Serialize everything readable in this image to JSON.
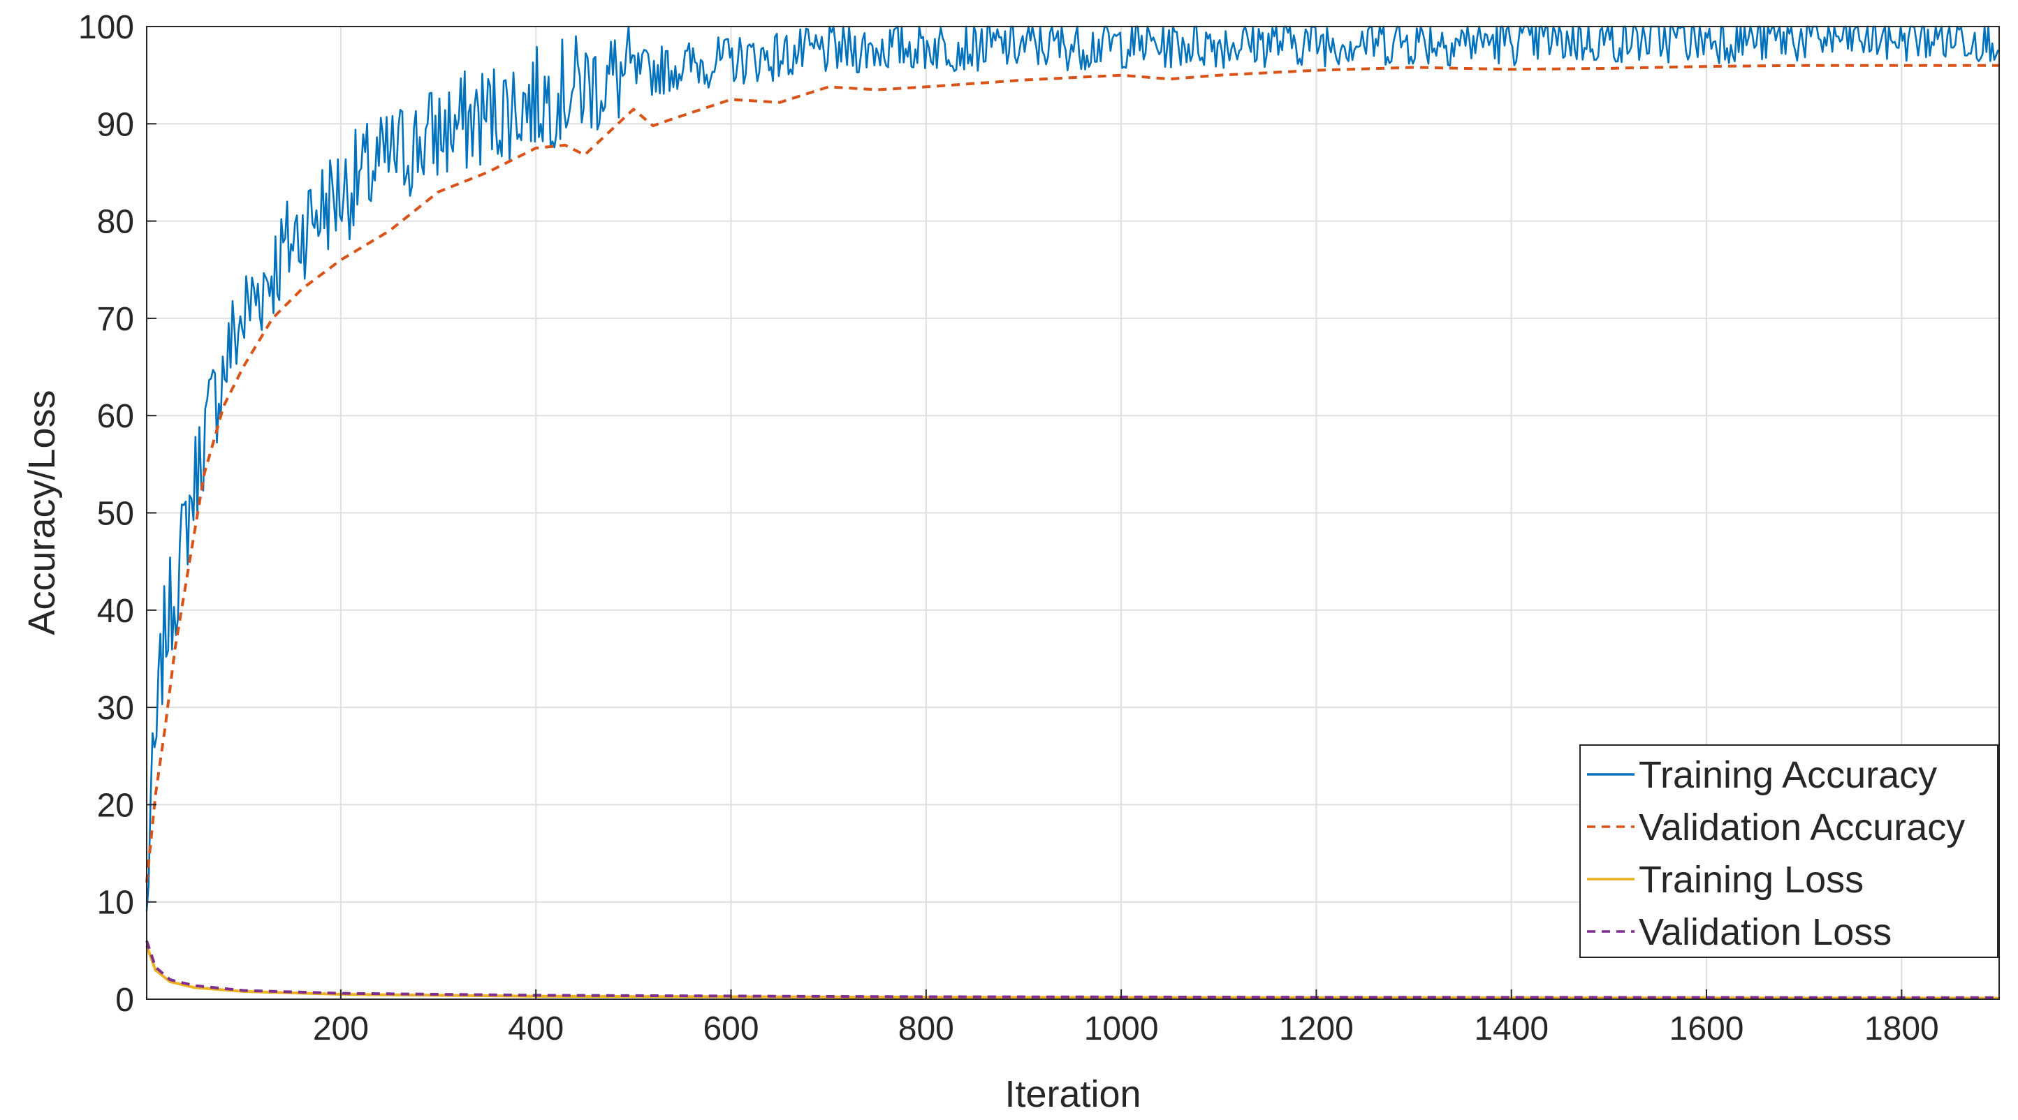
{
  "chart_data": {
    "type": "line",
    "title": "",
    "xlabel": "Iteration",
    "ylabel": "Accuracy/Loss",
    "xlim": [
      1,
      1900
    ],
    "ylim": [
      0,
      100
    ],
    "xticks": [
      200,
      400,
      600,
      800,
      1000,
      1200,
      1400,
      1600,
      1800
    ],
    "yticks": [
      0,
      10,
      20,
      30,
      40,
      50,
      60,
      70,
      80,
      90,
      100
    ],
    "grid": true,
    "legend_position": "bottom-right",
    "series": [
      {
        "name": "Training Accuracy",
        "color": "#0072BD",
        "style": "solid",
        "x": [
          1,
          5,
          10,
          15,
          20,
          30,
          40,
          50,
          60,
          75,
          90,
          110,
          130,
          150,
          175,
          200,
          230,
          260,
          300,
          350,
          400,
          450,
          500,
          550,
          600,
          650,
          700,
          750,
          800,
          900,
          1000,
          1100,
          1200,
          1300,
          1400,
          1500,
          1600,
          1700,
          1800,
          1900
        ],
        "values": [
          8,
          20,
          25,
          33,
          38,
          42,
          48,
          53,
          58,
          63,
          68,
          72,
          75,
          78,
          81,
          83,
          85,
          87,
          89,
          91,
          92.5,
          94,
          95,
          96,
          96.5,
          97,
          97.5,
          97.8,
          98,
          98,
          98.2,
          98.3,
          98.5,
          98.5,
          98.6,
          98.7,
          98.8,
          98.8,
          98.9,
          99
        ]
      },
      {
        "name": "Validation Accuracy",
        "color": "#D95319",
        "style": "dashed",
        "x": [
          1,
          10,
          20,
          30,
          45,
          60,
          80,
          100,
          130,
          160,
          200,
          250,
          300,
          350,
          400,
          430,
          450,
          500,
          520,
          540,
          600,
          650,
          700,
          750,
          800,
          900,
          1000,
          1050,
          1100,
          1200,
          1300,
          1400,
          1500,
          1600,
          1700,
          1800,
          1900
        ],
        "values": [
          12,
          21,
          28,
          36,
          45,
          54,
          61,
          65,
          70,
          73,
          76,
          79,
          83,
          85,
          87.5,
          87.8,
          86.8,
          91.5,
          89.8,
          90.5,
          92.5,
          92.2,
          93.8,
          93.5,
          93.8,
          94.5,
          95,
          94.6,
          95,
          95.5,
          95.8,
          95.6,
          95.7,
          95.9,
          96,
          96,
          96
        ]
      },
      {
        "name": "Training Loss",
        "color": "#EDB120",
        "style": "solid",
        "x": [
          1,
          10,
          25,
          50,
          100,
          200,
          400,
          800,
          1200,
          1600,
          1900
        ],
        "values": [
          5.5,
          3.0,
          1.8,
          1.2,
          0.8,
          0.5,
          0.3,
          0.2,
          0.15,
          0.12,
          0.1
        ]
      },
      {
        "name": "Validation Loss",
        "color": "#7E2F8E",
        "style": "dashed",
        "x": [
          1,
          10,
          25,
          50,
          100,
          200,
          400,
          800,
          1200,
          1600,
          1900
        ],
        "values": [
          6.0,
          3.3,
          2.0,
          1.4,
          0.9,
          0.6,
          0.4,
          0.25,
          0.2,
          0.18,
          0.16
        ]
      }
    ]
  }
}
